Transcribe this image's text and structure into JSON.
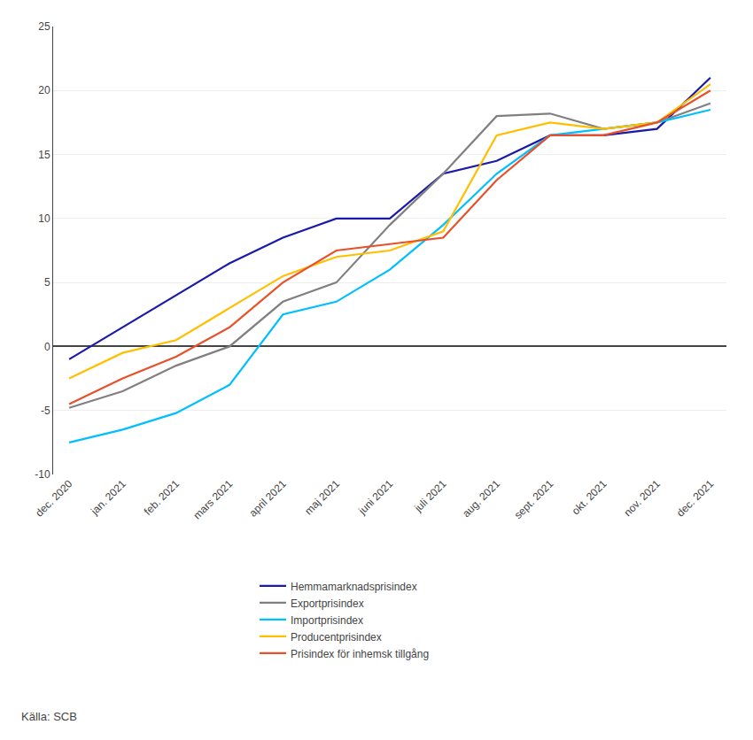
{
  "chart_data": {
    "type": "line",
    "categories": [
      "dec. 2020",
      "jan. 2021",
      "feb. 2021",
      "mars 2021",
      "april 2021",
      "maj 2021",
      "juni 2021",
      "juli 2021",
      "aug. 2021",
      "sept. 2021",
      "okt. 2021",
      "nov. 2021",
      "dec. 2021"
    ],
    "series": [
      {
        "name": "Hemmamarknadsprisindex",
        "color": "#1a1aaa",
        "values": [
          -1.0,
          1.5,
          4.0,
          6.5,
          8.5,
          10.0,
          10.0,
          13.5,
          14.5,
          16.5,
          16.5,
          17.0,
          21.0
        ]
      },
      {
        "name": "Exportprisindex",
        "color": "#808080",
        "values": [
          -4.8,
          -3.5,
          -1.5,
          0.0,
          3.5,
          5.0,
          9.5,
          13.5,
          18.0,
          18.2,
          17.0,
          17.5,
          19.0
        ]
      },
      {
        "name": "Importprisindex",
        "color": "#00bfff",
        "values": [
          -7.5,
          -6.5,
          -5.2,
          -3.0,
          2.5,
          3.5,
          6.0,
          9.5,
          13.5,
          16.5,
          17.0,
          17.5,
          18.5
        ]
      },
      {
        "name": "Producentprisindex",
        "color": "#ffbf00",
        "values": [
          -2.5,
          -0.5,
          0.5,
          3.0,
          5.5,
          7.0,
          7.5,
          9.0,
          16.5,
          17.5,
          17.0,
          17.5,
          20.5
        ]
      },
      {
        "name": "Prisindex för inhemsk tillgång",
        "color": "#e8502a",
        "values": [
          -4.5,
          -2.5,
          -0.8,
          1.5,
          5.0,
          7.5,
          8.0,
          8.5,
          13.0,
          16.5,
          16.5,
          17.5,
          20.0
        ]
      }
    ],
    "ylim": [
      -10,
      25
    ],
    "yticks": [
      -10,
      -5,
      0,
      5,
      10,
      15,
      20,
      25
    ],
    "grid": true,
    "legend": "bottom",
    "annotations": [
      "Källa: SCB"
    ]
  }
}
